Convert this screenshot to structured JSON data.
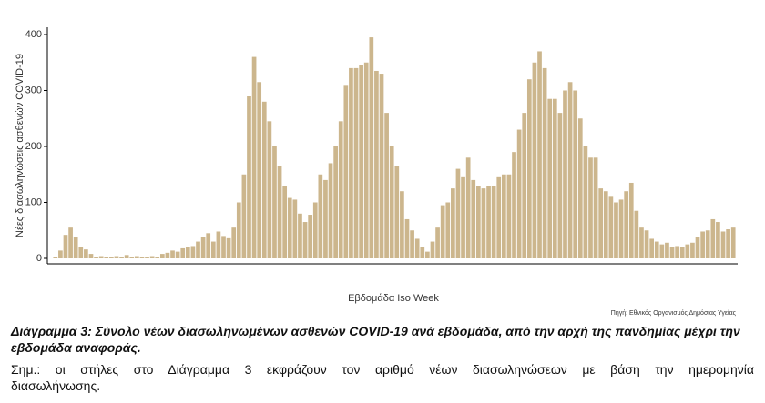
{
  "chart_data": {
    "type": "bar",
    "y_label": "Νέες διασωληνώσεις ασθενών COVID-19",
    "x_label": "Εβδομάδα Iso Week",
    "source": "Πηγή: Εθνικός Οργανισμός Δημόσιας Υγείας",
    "caption": "Διάγραμμα 3: Σύνολο νέων διασωληνωμένων ασθενών COVID-19 ανά εβδομάδα, από την αρχή της πανδημίας μέχρι την εβδομάδα αναφοράς.",
    "note": "Σημ.: οι στήλες στο Διάγραμμα 3 εκφράζουν τον αριθμό νέων διασωληνώσεων με βάση την ημερομηνία",
    "note_end": "διασωλήνωσης.",
    "color": "#ccb68d",
    "ylim": [
      0,
      400
    ],
    "yticks": [
      0,
      100,
      200,
      300,
      400
    ],
    "values": [
      2,
      14,
      42,
      55,
      38,
      20,
      16,
      8,
      3,
      4,
      3,
      2,
      4,
      3,
      6,
      3,
      4,
      2,
      3,
      4,
      2,
      8,
      10,
      14,
      12,
      18,
      20,
      22,
      30,
      38,
      45,
      30,
      48,
      40,
      36,
      55,
      100,
      150,
      290,
      360,
      315,
      280,
      245,
      200,
      165,
      130,
      108,
      105,
      80,
      65,
      78,
      100,
      150,
      140,
      170,
      200,
      245,
      310,
      340,
      340,
      345,
      350,
      395,
      335,
      330,
      260,
      200,
      165,
      120,
      70,
      50,
      35,
      20,
      12,
      30,
      55,
      95,
      100,
      125,
      160,
      145,
      180,
      140,
      130,
      125,
      130,
      130,
      145,
      150,
      150,
      190,
      230,
      260,
      320,
      350,
      370,
      340,
      285,
      285,
      260,
      300,
      315,
      300,
      250,
      200,
      180,
      180,
      125,
      120,
      110,
      100,
      105,
      120,
      135,
      85,
      55,
      50,
      35,
      30,
      25,
      28,
      20,
      22,
      20,
      25,
      28,
      38,
      48,
      50,
      70,
      65,
      48,
      52,
      55
    ]
  }
}
